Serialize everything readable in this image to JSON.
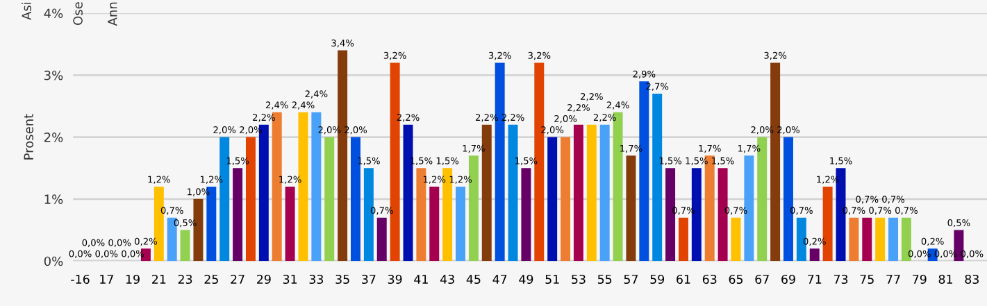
{
  "chart_data": {
    "type": "bar",
    "ylabel": "Prosent",
    "categories": [
      "-16",
      null,
      "17",
      null,
      "19",
      null,
      "21",
      null,
      "23",
      null,
      "25",
      null,
      "27",
      null,
      "29",
      null,
      "31",
      null,
      "33",
      null,
      "35",
      null,
      "37",
      null,
      "39",
      null,
      "41",
      null,
      "43",
      null,
      "45",
      null,
      "47",
      null,
      "49",
      null,
      "51",
      null,
      "53",
      null,
      "55",
      null,
      "57",
      null,
      "59",
      null,
      "61",
      null,
      "63",
      null,
      "65",
      null,
      "67",
      null,
      "69",
      null,
      "71",
      null,
      "73",
      null,
      "75",
      null,
      "77",
      null,
      "79",
      null,
      "81",
      null,
      "83"
    ],
    "values": [
      0,
      0,
      0,
      0,
      0,
      0.2,
      1.2,
      0.7,
      0.5,
      1.0,
      1.2,
      2.0,
      1.5,
      2.0,
      2.2,
      2.4,
      1.2,
      2.4,
      2.4,
      2.0,
      3.4,
      2.0,
      1.5,
      0.7,
      3.2,
      2.2,
      1.5,
      1.2,
      1.5,
      1.2,
      1.7,
      2.2,
      3.2,
      2.2,
      1.5,
      3.2,
      2.0,
      2.0,
      2.2,
      2.2,
      2.2,
      2.4,
      1.7,
      2.9,
      2.7,
      1.5,
      0.7,
      1.5,
      1.7,
      1.5,
      0.7,
      1.7,
      2.0,
      3.2,
      2.0,
      0.7,
      0.2,
      1.2,
      1.5,
      0.7,
      0.7,
      0.7,
      0.7,
      0.7,
      0,
      0.2,
      0,
      0.5,
      0
    ],
    "value_labels": [
      "0,0%",
      "0,0%",
      "0,0%",
      "0,0%",
      "0,0%",
      "0,2%",
      "1,2%",
      "0,7%",
      "0,5%",
      "1,0%",
      "1,2%",
      "2,0%",
      "1,5%",
      "2,0%",
      "2,2%",
      "2,4%",
      "1,2%",
      "2,4%",
      "2,4%",
      "2,0%",
      "3,4%",
      "2,0%",
      "1,5%",
      "0,7%",
      "3,2%",
      "2,2%",
      "1,5%",
      "1,2%",
      "1,5%",
      "1,2%",
      "1,7%",
      "2,2%",
      "3,2%",
      "2,2%",
      "1,5%",
      "3,2%",
      "2,0%",
      "2,0%",
      "2,2%",
      "2,2%",
      "2,2%",
      "2,4%",
      "1,7%",
      "2,9%",
      "2,7%",
      "1,5%",
      "0,7%",
      "1,5%",
      "1,7%",
      "1,5%",
      "0,7%",
      "1,7%",
      "2,0%",
      "3,2%",
      "2,0%",
      "0,7%",
      "0,2%",
      "1,2%",
      "1,5%",
      "0,7%",
      "0,7%",
      "0,7%",
      "0,7%",
      "0,7%",
      "0,0%",
      "0,2%",
      "0,0%",
      "0,5%",
      "0,0%"
    ],
    "colors": [
      "#0088e0",
      "#660066",
      "#e04400",
      "#0010b0",
      "#ed7d31",
      "#a50050",
      "#ffc000",
      "#4aa2f8",
      "#92d050",
      "#843c0c",
      "#0050e0",
      "#0088e0",
      "#660066",
      "#e04400",
      "#0010b0",
      "#ed7d31",
      "#a50050",
      "#ffc000",
      "#4aa2f8",
      "#92d050",
      "#843c0c",
      "#0050e0",
      "#0088e0",
      "#660066",
      "#e04400",
      "#0010b0",
      "#ed7d31",
      "#a50050",
      "#ffc000",
      "#4aa2f8",
      "#92d050",
      "#843c0c",
      "#0050e0",
      "#0088e0",
      "#660066",
      "#e04400",
      "#0010b0",
      "#ed7d31",
      "#a50050",
      "#ffc000",
      "#4aa2f8",
      "#92d050",
      "#843c0c",
      "#0050e0",
      "#0088e0",
      "#660066",
      "#e04400",
      "#0010b0",
      "#ed7d31",
      "#a50050",
      "#ffc000",
      "#4aa2f8",
      "#92d050",
      "#843c0c",
      "#0050e0",
      "#0088e0",
      "#660066",
      "#e04400",
      "#0010b0",
      "#ed7d31",
      "#a50050",
      "#ffc000",
      "#4aa2f8",
      "#92d050",
      "#843c0c",
      "#0050e0",
      "#0088e0",
      "#660066",
      "#e04400"
    ],
    "ylim": [
      0,
      4
    ],
    "yticks": [
      {
        "value": 0,
        "label": "0%"
      },
      {
        "value": 1,
        "label": "1%"
      },
      {
        "value": 2,
        "label": "2%"
      },
      {
        "value": 3,
        "label": "3%"
      },
      {
        "value": 4,
        "label": "4%"
      }
    ],
    "grid": "y",
    "annotations": [
      "Asi",
      "Ose",
      "Ann"
    ]
  }
}
